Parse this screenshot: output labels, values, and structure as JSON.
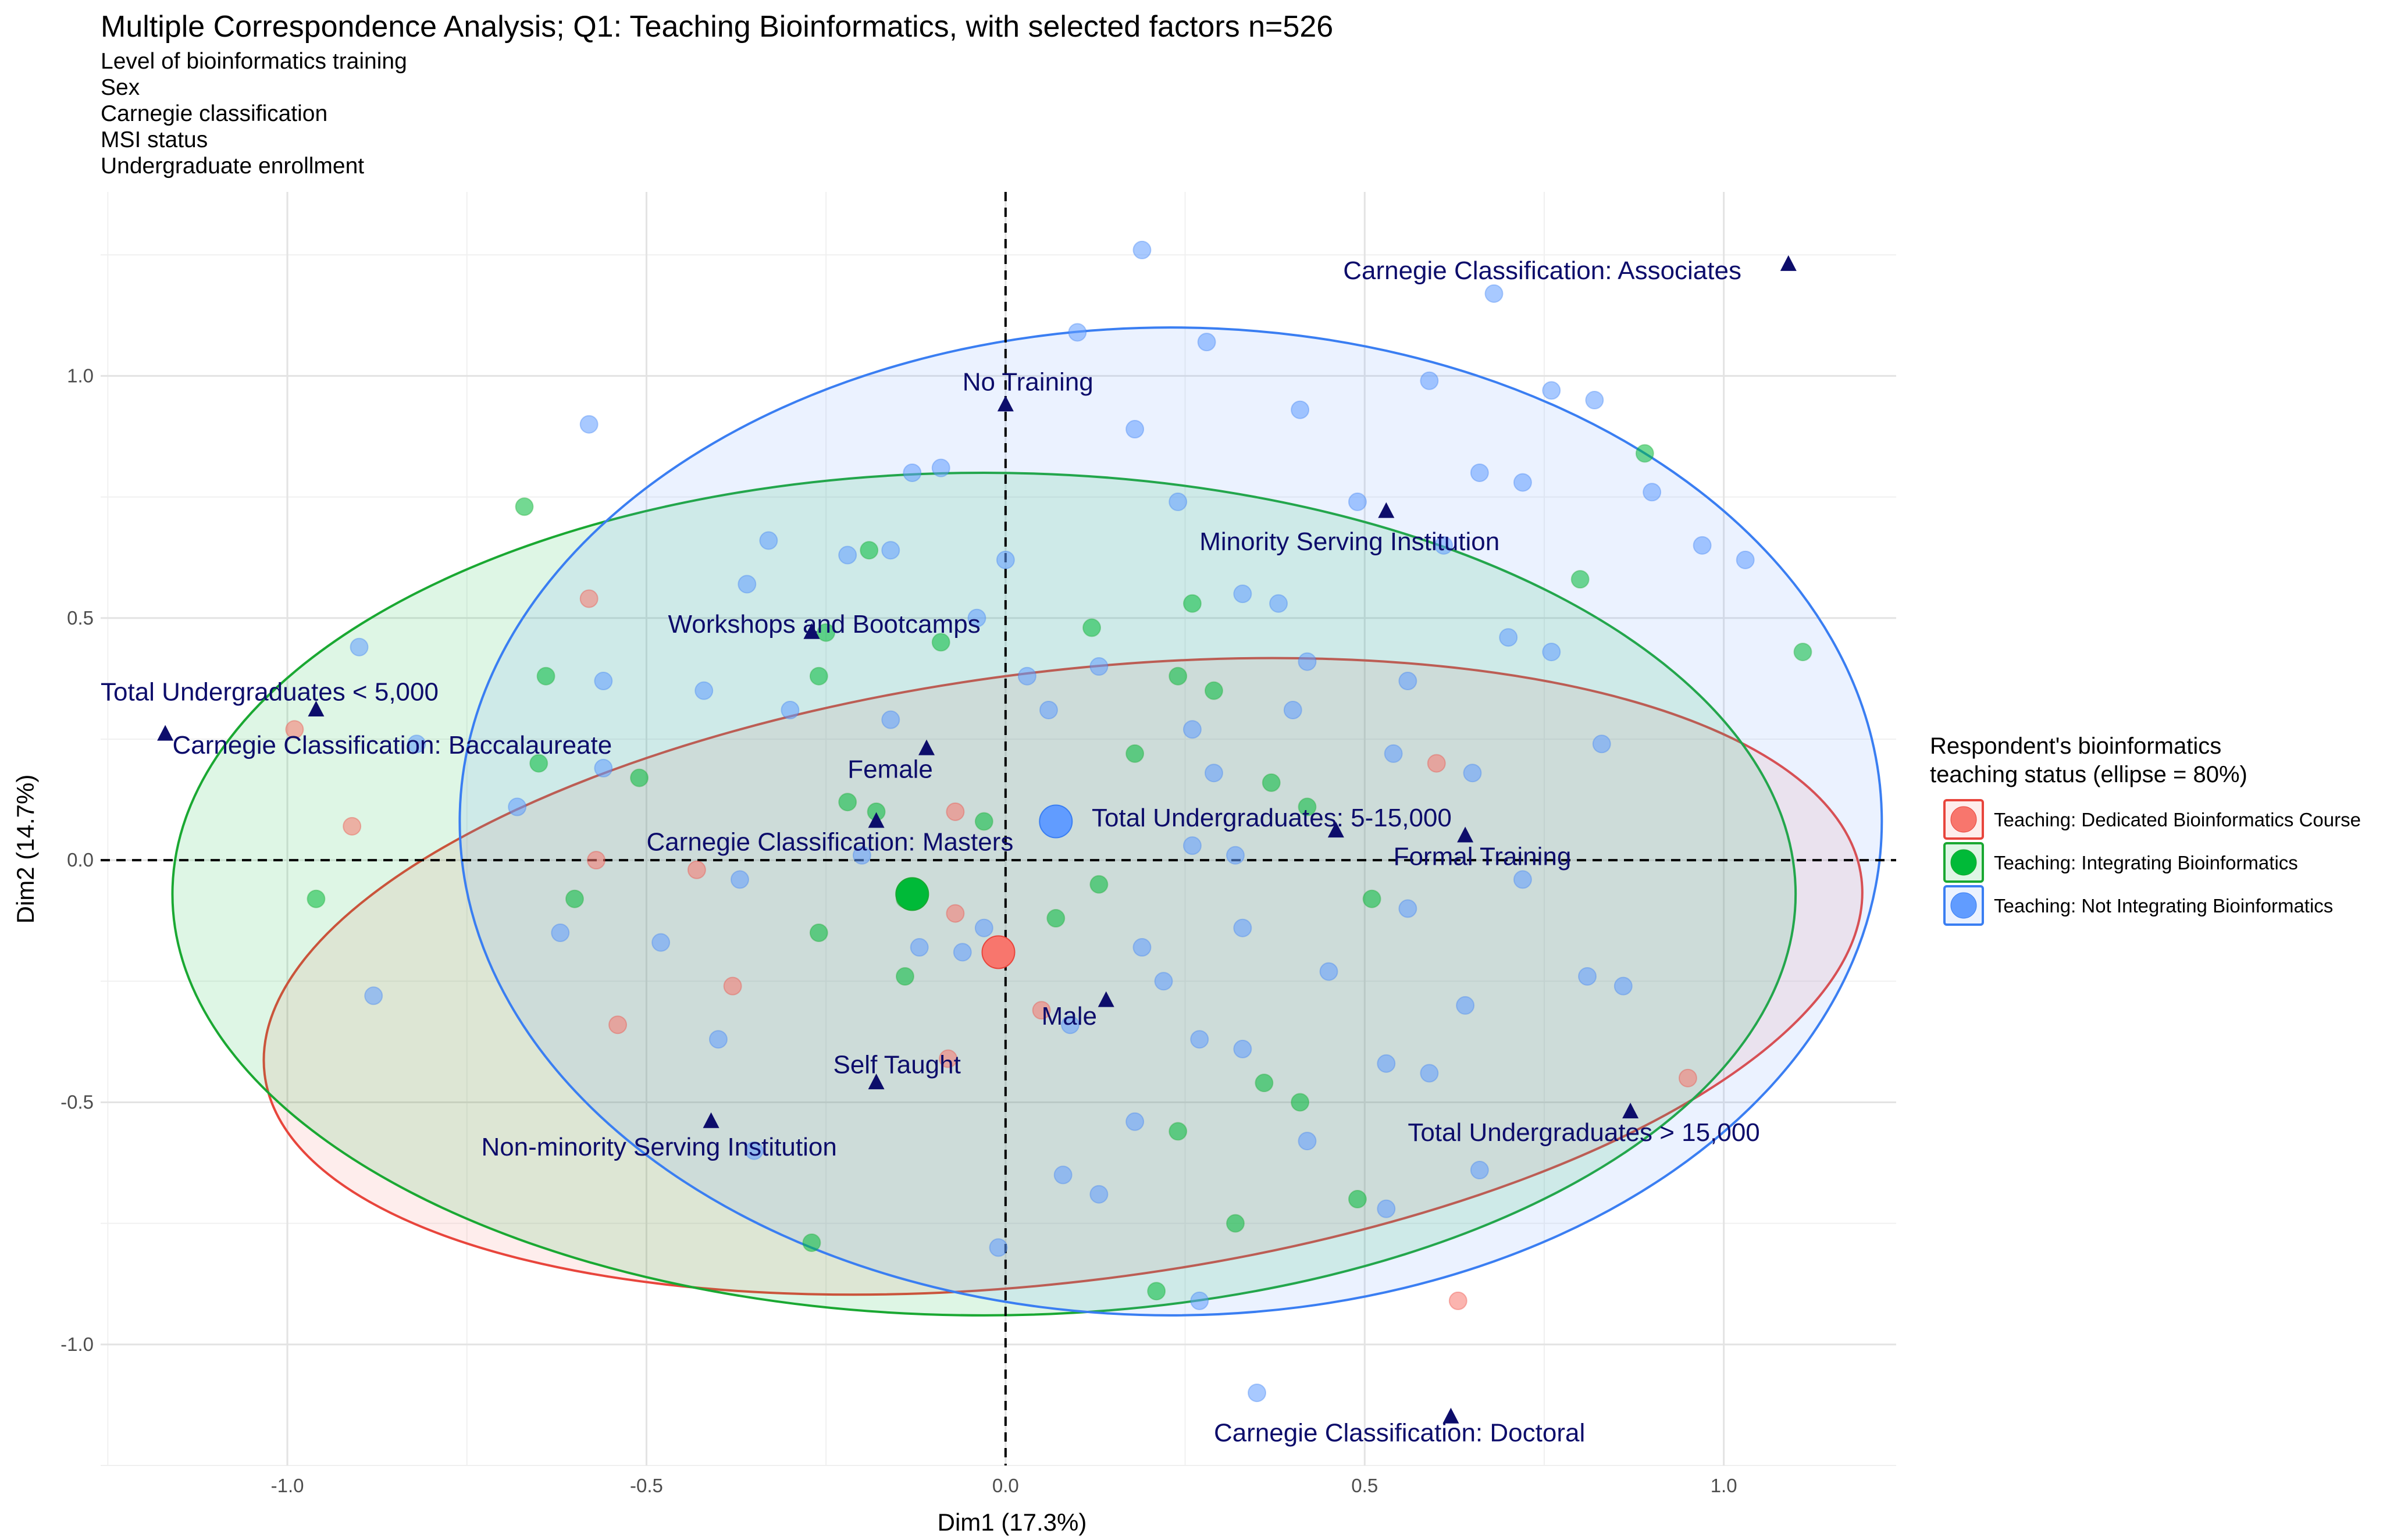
{
  "chart_data": {
    "type": "scatter",
    "title": "Multiple Correspondence Analysis; Q1: Teaching Bioinformatics, with selected factors n=526",
    "subtitle_lines": [
      "Level of bioinformatics training",
      "Sex",
      "Carnegie classification",
      "MSI status",
      "Undergraduate enrollment"
    ],
    "xlabel": "Dim1 (17.3%)",
    "ylabel": "Dim2 (14.7%)",
    "xlim": [
      -1.26,
      1.24
    ],
    "ylim": [
      -1.25,
      1.38
    ],
    "x_ticks": [
      -1.0,
      -0.5,
      0.0,
      0.5,
      1.0
    ],
    "x_tick_labels": [
      "-1.0",
      "-0.5",
      "0.0",
      "0.5",
      "1.0"
    ],
    "y_ticks": [
      -1.0,
      -0.5,
      0.0,
      0.5,
      1.0
    ],
    "y_tick_labels": [
      "-1.0",
      "-0.5",
      "0.0",
      "0.5",
      "1.0"
    ],
    "grid": true,
    "reference_lines": {
      "x": 0,
      "y": 0,
      "style": "dashed"
    },
    "legend": {
      "title_lines": [
        "Respondent's bioinformatics",
        "teaching status (ellipse = 80%)"
      ],
      "placement": "right"
    },
    "series": [
      {
        "name": "Teaching: Dedicated Bioinformatics Course",
        "color": "#F8766D",
        "stroke": "#E8453C",
        "centroid": [
          -0.01,
          -0.19
        ],
        "ellipse": {
          "cx": 0.08,
          "cy": -0.24,
          "rx": 1.12,
          "ry": 0.63,
          "angle_deg": -7
        },
        "points": [
          [
            -0.58,
            0.54
          ],
          [
            -0.99,
            0.27
          ],
          [
            -0.91,
            0.07
          ],
          [
            -0.57,
            0.0
          ],
          [
            -0.43,
            -0.02
          ],
          [
            -0.38,
            -0.26
          ],
          [
            -0.07,
            -0.11
          ],
          [
            -0.08,
            -0.41
          ],
          [
            0.05,
            -0.31
          ],
          [
            0.6,
            0.2
          ],
          [
            0.63,
            -0.91
          ],
          [
            0.95,
            -0.45
          ],
          [
            -0.54,
            -0.34
          ],
          [
            -0.07,
            0.1
          ]
        ]
      },
      {
        "name": "Teaching: Integrating Bioinformatics",
        "color": "#00BA38",
        "stroke": "#1AA832",
        "centroid": [
          -0.13,
          -0.07
        ],
        "ellipse": {
          "cx": -0.03,
          "cy": -0.07,
          "rx": 1.13,
          "ry": 0.87,
          "angle_deg": 0
        },
        "points": [
          [
            -0.67,
            0.73
          ],
          [
            -0.64,
            0.38
          ],
          [
            -0.65,
            0.2
          ],
          [
            -0.51,
            0.17
          ],
          [
            -0.6,
            -0.08
          ],
          [
            -0.96,
            -0.08
          ],
          [
            -0.26,
            0.38
          ],
          [
            -0.25,
            0.47
          ],
          [
            -0.22,
            0.12
          ],
          [
            -0.18,
            0.1
          ],
          [
            -0.14,
            -0.08
          ],
          [
            -0.09,
            0.45
          ],
          [
            -0.03,
            0.08
          ],
          [
            -0.26,
            -0.15
          ],
          [
            -0.14,
            -0.24
          ],
          [
            0.07,
            -0.12
          ],
          [
            0.13,
            -0.05
          ],
          [
            0.12,
            0.48
          ],
          [
            0.18,
            0.22
          ],
          [
            0.24,
            0.38
          ],
          [
            0.29,
            0.35
          ],
          [
            0.26,
            0.53
          ],
          [
            0.37,
            0.16
          ],
          [
            0.42,
            0.11
          ],
          [
            0.51,
            -0.08
          ],
          [
            0.36,
            -0.46
          ],
          [
            0.41,
            -0.5
          ],
          [
            0.24,
            -0.56
          ],
          [
            0.49,
            -0.7
          ],
          [
            0.32,
            -0.75
          ],
          [
            0.21,
            -0.89
          ],
          [
            -0.27,
            -0.79
          ],
          [
            0.8,
            0.58
          ],
          [
            0.89,
            0.84
          ],
          [
            1.11,
            0.43
          ],
          [
            -0.19,
            0.64
          ]
        ]
      },
      {
        "name": "Teaching: Not Integrating Bioinformatics",
        "color": "#619CFF",
        "stroke": "#3A7EF2",
        "centroid": [
          0.07,
          0.08
        ],
        "ellipse": {
          "cx": 0.23,
          "cy": 0.08,
          "rx": 0.99,
          "ry": 1.02,
          "angle_deg": 0
        },
        "points": [
          [
            0.19,
            1.26
          ],
          [
            0.1,
            1.09
          ],
          [
            0.28,
            1.07
          ],
          [
            0.59,
            0.99
          ],
          [
            0.68,
            1.17
          ],
          [
            0.41,
            0.93
          ],
          [
            0.18,
            0.89
          ],
          [
            0.76,
            0.97
          ],
          [
            0.82,
            0.95
          ],
          [
            0.66,
            0.8
          ],
          [
            0.72,
            0.78
          ],
          [
            0.9,
            0.76
          ],
          [
            0.97,
            0.65
          ],
          [
            1.03,
            0.62
          ],
          [
            0.49,
            0.74
          ],
          [
            0.24,
            0.74
          ],
          [
            0.61,
            0.65
          ],
          [
            0.33,
            0.55
          ],
          [
            0.38,
            0.53
          ],
          [
            0.7,
            0.46
          ],
          [
            0.76,
            0.43
          ],
          [
            0.56,
            0.37
          ],
          [
            0.42,
            0.41
          ],
          [
            0.26,
            0.27
          ],
          [
            0.4,
            0.31
          ],
          [
            0.54,
            0.22
          ],
          [
            0.65,
            0.18
          ],
          [
            0.83,
            0.24
          ],
          [
            0.29,
            0.18
          ],
          [
            0.26,
            0.03
          ],
          [
            0.32,
            0.01
          ],
          [
            0.56,
            -0.1
          ],
          [
            0.72,
            -0.04
          ],
          [
            -0.58,
            0.9
          ],
          [
            -0.13,
            0.8
          ],
          [
            -0.09,
            0.81
          ],
          [
            -0.36,
            0.57
          ],
          [
            -0.33,
            0.66
          ],
          [
            -0.22,
            0.63
          ],
          [
            -0.16,
            0.64
          ],
          [
            -0.9,
            0.44
          ],
          [
            -0.82,
            0.24
          ],
          [
            -0.56,
            0.37
          ],
          [
            -0.42,
            0.35
          ],
          [
            -0.3,
            0.31
          ],
          [
            -0.16,
            0.29
          ],
          [
            -0.04,
            0.5
          ],
          [
            0.03,
            0.38
          ],
          [
            0.06,
            0.31
          ],
          [
            0.13,
            0.4
          ],
          [
            -0.68,
            0.11
          ],
          [
            -0.56,
            0.19
          ],
          [
            -0.62,
            -0.15
          ],
          [
            -0.88,
            -0.28
          ],
          [
            -0.48,
            -0.17
          ],
          [
            -0.37,
            -0.04
          ],
          [
            -0.4,
            -0.37
          ],
          [
            -0.35,
            -0.6
          ],
          [
            -0.2,
            0.01
          ],
          [
            -0.12,
            -0.18
          ],
          [
            -0.06,
            -0.19
          ],
          [
            -0.03,
            -0.14
          ],
          [
            0.0,
            0.62
          ],
          [
            0.19,
            -0.18
          ],
          [
            0.22,
            -0.25
          ],
          [
            0.33,
            -0.14
          ],
          [
            0.27,
            -0.37
          ],
          [
            0.33,
            -0.39
          ],
          [
            0.45,
            -0.23
          ],
          [
            0.53,
            -0.42
          ],
          [
            0.59,
            -0.44
          ],
          [
            0.64,
            -0.3
          ],
          [
            0.66,
            -0.64
          ],
          [
            0.53,
            -0.72
          ],
          [
            0.81,
            -0.24
          ],
          [
            0.86,
            -0.26
          ],
          [
            0.42,
            -0.58
          ],
          [
            0.27,
            -0.91
          ],
          [
            0.35,
            -1.1
          ],
          [
            0.13,
            -0.69
          ],
          [
            0.09,
            -0.34
          ],
          [
            -0.01,
            -0.8
          ],
          [
            0.08,
            -0.65
          ],
          [
            0.18,
            -0.54
          ]
        ]
      }
    ],
    "variable_categories": [
      {
        "label": "Carnegie Classification: Associates",
        "x": 1.09,
        "y": 1.23,
        "label_x": 0.47,
        "label_y": 1.2,
        "anchor": "start"
      },
      {
        "label": "No Training",
        "x": 0.0,
        "y": 0.94,
        "label_x": -0.06,
        "label_y": 0.97,
        "anchor": "start"
      },
      {
        "label": "Minority Serving Institution",
        "x": 0.53,
        "y": 0.72,
        "label_x": 0.27,
        "label_y": 0.64,
        "anchor": "start"
      },
      {
        "label": "Workshops and Bootcamps",
        "x": -0.27,
        "y": 0.47,
        "label_x": -0.47,
        "label_y": 0.47,
        "anchor": "start"
      },
      {
        "label": "Total Undergraduates < 5,000",
        "x": -1.17,
        "y": 0.26,
        "label_x": -1.26,
        "label_y": 0.33,
        "anchor": "start"
      },
      {
        "label": "Total Undergraduates < 5,000",
        "x": -0.96,
        "y": 0.31,
        "label_x": null,
        "label_y": null,
        "anchor": "start"
      },
      {
        "label": "Carnegie Classification: Baccalaureate",
        "x": -0.96,
        "y": 0.31,
        "label_x": -1.16,
        "label_y": 0.22,
        "anchor": "start"
      },
      {
        "label": "Female",
        "x": -0.11,
        "y": 0.23,
        "label_x": -0.22,
        "label_y": 0.17,
        "anchor": "start"
      },
      {
        "label": "Total Undergraduates: 5-15,000",
        "x": 0.46,
        "y": 0.06,
        "label_x": 0.12,
        "label_y": 0.07,
        "anchor": "start"
      },
      {
        "label": "Carnegie Classification: Masters",
        "x": -0.18,
        "y": 0.08,
        "label_x": -0.5,
        "label_y": 0.02,
        "anchor": "start"
      },
      {
        "label": "Formal Training",
        "x": 0.64,
        "y": 0.05,
        "label_x": 0.54,
        "label_y": -0.01,
        "anchor": "start"
      },
      {
        "label": "Male",
        "x": 0.14,
        "y": -0.29,
        "label_x": 0.05,
        "label_y": -0.34,
        "anchor": "start"
      },
      {
        "label": "Self Taught",
        "x": -0.18,
        "y": -0.46,
        "label_x": -0.24,
        "label_y": -0.44,
        "anchor": "start"
      },
      {
        "label": "Non-minority Serving Institution",
        "x": -0.41,
        "y": -0.54,
        "label_x": -0.73,
        "label_y": -0.61,
        "anchor": "start"
      },
      {
        "label": "Total Undergraduates > 15,000",
        "x": 0.87,
        "y": -0.52,
        "label_x": 0.56,
        "label_y": -0.58,
        "anchor": "start"
      },
      {
        "label": "Carnegie Classification: Doctoral",
        "x": 0.62,
        "y": -1.15,
        "label_x": 0.29,
        "label_y": -1.2,
        "anchor": "start"
      }
    ]
  }
}
